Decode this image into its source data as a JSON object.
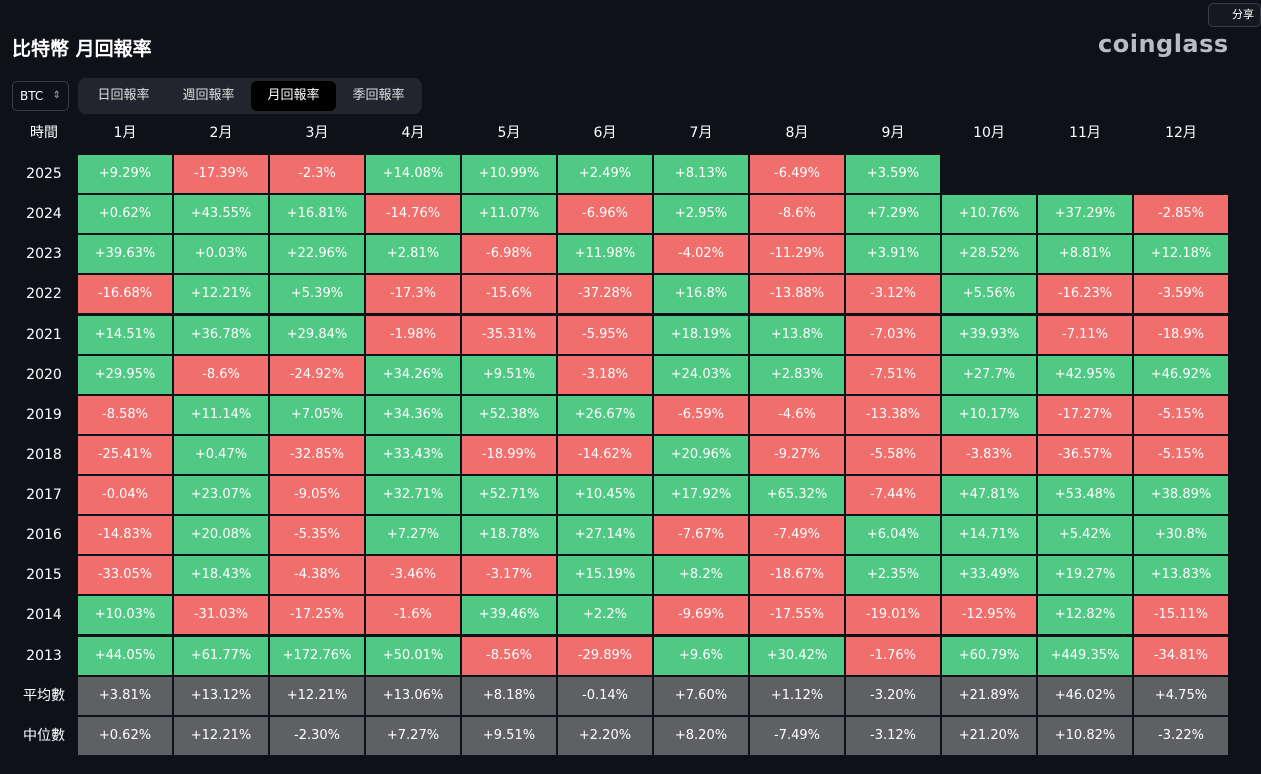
{
  "header": {
    "title": "比特幣 月回報率",
    "logo": "coinglass",
    "share": "分享"
  },
  "controls": {
    "selector": "BTC",
    "tabs": [
      "日回報率",
      "週回報率",
      "月回報率",
      "季回報率"
    ],
    "active_tab": 2
  },
  "table": {
    "columns": [
      "時間",
      "1月",
      "2月",
      "3月",
      "4月",
      "5月",
      "6月",
      "7月",
      "8月",
      "9月",
      "10月",
      "11月",
      "12月"
    ],
    "rows": [
      {
        "label": "2025",
        "cells": [
          "+9.29%",
          "-17.39%",
          "-2.3%",
          "+14.08%",
          "+10.99%",
          "+2.49%",
          "+8.13%",
          "-6.49%",
          "+3.59%"
        ]
      },
      {
        "label": "2024",
        "cells": [
          "+0.62%",
          "+43.55%",
          "+16.81%",
          "-14.76%",
          "+11.07%",
          "-6.96%",
          "+2.95%",
          "-8.6%",
          "+7.29%",
          "+10.76%",
          "+37.29%",
          "-2.85%"
        ]
      },
      {
        "label": "2023",
        "cells": [
          "+39.63%",
          "+0.03%",
          "+22.96%",
          "+2.81%",
          "-6.98%",
          "+11.98%",
          "-4.02%",
          "-11.29%",
          "+3.91%",
          "+28.52%",
          "+8.81%",
          "+12.18%"
        ]
      },
      {
        "label": "2022",
        "cells": [
          "-16.68%",
          "+12.21%",
          "+5.39%",
          "-17.3%",
          "-15.6%",
          "-37.28%",
          "+16.8%",
          "-13.88%",
          "-3.12%",
          "+5.56%",
          "-16.23%",
          "-3.59%"
        ]
      },
      {
        "label": "2021",
        "cells": [
          "+14.51%",
          "+36.78%",
          "+29.84%",
          "-1.98%",
          "-35.31%",
          "-5.95%",
          "+18.19%",
          "+13.8%",
          "-7.03%",
          "+39.93%",
          "-7.11%",
          "-18.9%"
        ]
      },
      {
        "label": "2020",
        "cells": [
          "+29.95%",
          "-8.6%",
          "-24.92%",
          "+34.26%",
          "+9.51%",
          "-3.18%",
          "+24.03%",
          "+2.83%",
          "-7.51%",
          "+27.7%",
          "+42.95%",
          "+46.92%"
        ]
      },
      {
        "label": "2019",
        "cells": [
          "-8.58%",
          "+11.14%",
          "+7.05%",
          "+34.36%",
          "+52.38%",
          "+26.67%",
          "-6.59%",
          "-4.6%",
          "-13.38%",
          "+10.17%",
          "-17.27%",
          "-5.15%"
        ]
      },
      {
        "label": "2018",
        "cells": [
          "-25.41%",
          "+0.47%",
          "-32.85%",
          "+33.43%",
          "-18.99%",
          "-14.62%",
          "+20.96%",
          "-9.27%",
          "-5.58%",
          "-3.83%",
          "-36.57%",
          "-5.15%"
        ]
      },
      {
        "label": "2017",
        "cells": [
          "-0.04%",
          "+23.07%",
          "-9.05%",
          "+32.71%",
          "+52.71%",
          "+10.45%",
          "+17.92%",
          "+65.32%",
          "-7.44%",
          "+47.81%",
          "+53.48%",
          "+38.89%"
        ]
      },
      {
        "label": "2016",
        "cells": [
          "-14.83%",
          "+20.08%",
          "-5.35%",
          "+7.27%",
          "+18.78%",
          "+27.14%",
          "-7.67%",
          "-7.49%",
          "+6.04%",
          "+14.71%",
          "+5.42%",
          "+30.8%"
        ]
      },
      {
        "label": "2015",
        "cells": [
          "-33.05%",
          "+18.43%",
          "-4.38%",
          "-3.46%",
          "-3.17%",
          "+15.19%",
          "+8.2%",
          "-18.67%",
          "+2.35%",
          "+33.49%",
          "+19.27%",
          "+13.83%"
        ]
      },
      {
        "label": "2014",
        "cells": [
          "+10.03%",
          "-31.03%",
          "-17.25%",
          "-1.6%",
          "+39.46%",
          "+2.2%",
          "-9.69%",
          "-17.55%",
          "-19.01%",
          "-12.95%",
          "+12.82%",
          "-15.11%"
        ]
      },
      {
        "label": "2013",
        "cells": [
          "+44.05%",
          "+61.77%",
          "+172.76%",
          "+50.01%",
          "-8.56%",
          "-29.89%",
          "+9.6%",
          "+30.42%",
          "-1.76%",
          "+60.79%",
          "+449.35%",
          "-34.81%"
        ]
      }
    ],
    "summary": [
      {
        "label": "平均數",
        "cells": [
          "+3.81%",
          "+13.12%",
          "+12.21%",
          "+13.06%",
          "+8.18%",
          "-0.14%",
          "+7.60%",
          "+1.12%",
          "-3.20%",
          "+21.89%",
          "+46.02%",
          "+4.75%"
        ]
      },
      {
        "label": "中位數",
        "cells": [
          "+0.62%",
          "+12.21%",
          "-2.30%",
          "+7.27%",
          "+9.51%",
          "+2.20%",
          "+8.20%",
          "-7.49%",
          "-3.12%",
          "+21.20%",
          "+10.82%",
          "-3.22%"
        ]
      }
    ]
  }
}
